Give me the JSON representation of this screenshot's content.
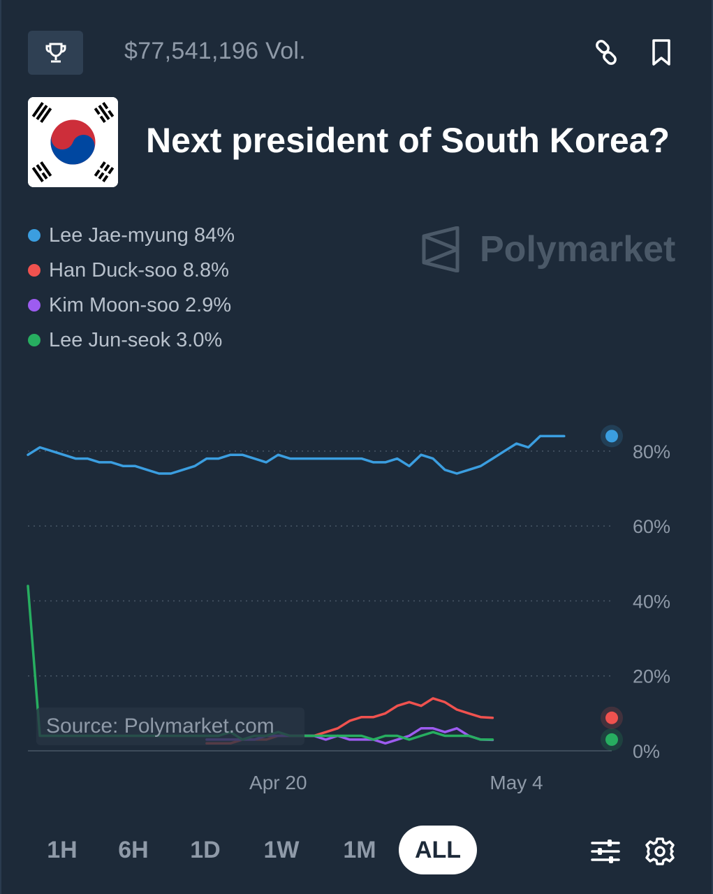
{
  "header": {
    "volume": "$77,541,196 Vol.",
    "icons": [
      "trophy-icon",
      "link-icon",
      "bookmark-icon"
    ]
  },
  "market": {
    "title": "Next president of South Korea?",
    "flag_icon": "south-korea-flag"
  },
  "watermark": "Polymarket",
  "source": "Source: Polymarket.com",
  "legend": [
    {
      "label": "Lee Jae-myung 84%",
      "color": "#3b9ee0"
    },
    {
      "label": "Han Duck-soo 8.8%",
      "color": "#f0524f"
    },
    {
      "label": "Kim Moon-soo 2.9%",
      "color": "#9d5cf0"
    },
    {
      "label": "Lee Jun-seok 3.0%",
      "color": "#27ae60"
    }
  ],
  "tabs": [
    "1H",
    "6H",
    "1D",
    "1W",
    "1M",
    "ALL"
  ],
  "active_tab": "ALL",
  "tools": [
    "sliders-icon",
    "gear-icon"
  ],
  "chart_data": {
    "type": "line",
    "ylim": [
      0,
      100
    ],
    "ytick_values": [
      0,
      20,
      40,
      60,
      80
    ],
    "ytick_labels": [
      "0%",
      "20%",
      "40%",
      "60%",
      "80%"
    ],
    "xtick_labels": [
      "Apr 20",
      "May 4"
    ],
    "xtick_positions": [
      15,
      35
    ],
    "x": [
      -6,
      -5,
      -4,
      -3,
      -2,
      -1,
      0,
      1,
      2,
      3,
      4,
      5,
      6,
      7,
      8,
      9,
      10,
      11,
      12,
      13,
      14,
      15,
      16,
      17,
      18,
      19,
      20,
      21,
      22,
      23,
      24,
      25,
      26,
      27,
      28,
      29,
      30,
      31,
      32,
      33,
      34,
      35,
      36,
      37,
      38,
      39,
      40,
      41,
      42,
      43,
      44,
      45,
      46,
      47,
      48,
      49
    ],
    "grid": true,
    "series": [
      {
        "name": "Lee Jae-myung",
        "color": "#3b9ee0",
        "values": [
          79,
          81,
          80,
          79,
          78,
          78,
          77,
          77,
          76,
          76,
          75,
          74,
          74,
          75,
          76,
          78,
          78,
          79,
          79,
          78,
          77,
          79,
          78,
          78,
          78,
          78,
          78,
          78,
          78,
          77,
          77,
          78,
          76,
          79,
          78,
          75,
          74,
          75,
          76,
          78,
          80,
          82,
          81,
          84,
          84,
          84,
          null,
          null,
          null,
          null,
          null,
          null,
          null,
          null,
          null,
          null
        ]
      },
      {
        "name": "Han Duck-soo",
        "color": "#f0524f",
        "values": [
          null,
          null,
          null,
          null,
          null,
          null,
          null,
          null,
          null,
          null,
          null,
          null,
          null,
          null,
          null,
          2,
          2,
          2,
          3,
          3,
          3,
          4,
          4,
          4,
          4,
          5,
          6,
          8,
          9,
          9,
          10,
          12,
          13,
          12,
          14,
          13,
          11,
          10,
          9,
          8.8,
          null,
          null,
          null,
          null,
          null,
          null,
          null,
          null,
          null,
          null,
          null,
          null,
          null,
          null,
          null,
          null
        ]
      },
      {
        "name": "Kim Moon-soo",
        "color": "#9d5cf0",
        "values": [
          null,
          null,
          null,
          null,
          null,
          null,
          null,
          null,
          null,
          null,
          null,
          null,
          null,
          null,
          null,
          3,
          3,
          3,
          3,
          3,
          4,
          4,
          4,
          4,
          4,
          3,
          4,
          3,
          3,
          3,
          2,
          3,
          4,
          6,
          6,
          5,
          6,
          4,
          3,
          2.9,
          null,
          null,
          null,
          null,
          null,
          null,
          null,
          null,
          null,
          null,
          null,
          null,
          null,
          null,
          null,
          null
        ]
      },
      {
        "name": "Lee Jun-seok",
        "color": "#27ae60",
        "values": [
          44,
          4,
          4,
          4,
          4,
          4,
          4,
          4,
          4,
          4,
          4,
          4,
          4,
          4,
          4,
          4,
          4,
          5,
          3,
          4,
          4,
          5,
          4,
          4,
          4,
          4,
          4,
          4,
          4,
          3,
          4,
          4,
          3,
          4,
          5,
          4,
          4,
          4,
          3,
          3,
          null,
          null,
          null,
          null,
          null,
          null,
          null,
          null,
          null,
          null,
          null,
          null,
          null,
          null,
          null,
          null
        ]
      }
    ]
  }
}
